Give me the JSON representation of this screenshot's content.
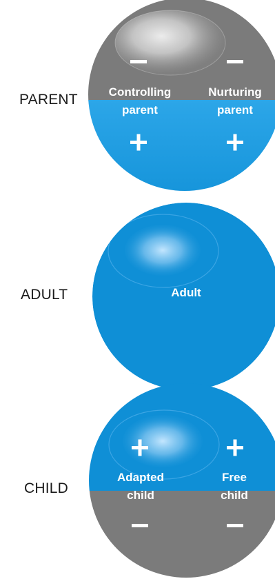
{
  "labels": {
    "parent": "PARENT",
    "adult": "ADULT",
    "child": "CHILD"
  },
  "parent": {
    "left_line1": "Controlling",
    "left_line2": "parent",
    "right_line1": "Nurturing",
    "right_line2": "parent",
    "top_signs": [
      "−",
      "−"
    ],
    "bottom_signs": [
      "+",
      "+"
    ]
  },
  "adult": {
    "label": "Adult"
  },
  "child": {
    "left_line1": "Adapted",
    "left_line2": "child",
    "right_line1": "Free",
    "right_line2": "child",
    "top_signs": [
      "+",
      "+"
    ],
    "bottom_signs": [
      "−",
      "−"
    ]
  },
  "colors": {
    "blue": "#0f8fd6",
    "gray": "#7b7b7b",
    "highlight": "#ffffff",
    "text": "#ffffff"
  }
}
